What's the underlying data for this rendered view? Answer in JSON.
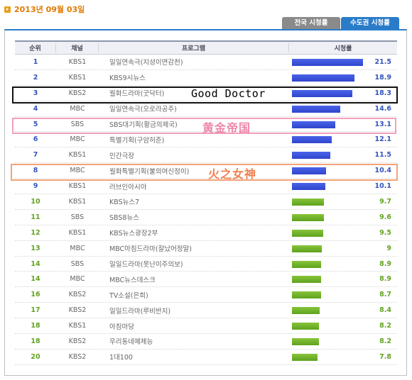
{
  "date": "2013년 09월 03일",
  "tabs": [
    {
      "label": "전국 시청률",
      "active": false
    },
    {
      "label": "수도권 시청률",
      "active": true
    }
  ],
  "columns": {
    "rank": "순위",
    "channel": "채널",
    "program": "프로그램",
    "rating": "시청률"
  },
  "colors": {
    "top_bar": "#3a52dd",
    "lower_bar": "#6aaa26",
    "accent_tab": "#2a7cc9",
    "date_text": "#e07a00"
  },
  "max_rating": 21.5,
  "rows": [
    {
      "rank": "1",
      "channel": "KBS1",
      "program": "일일연속극(지성이면감천)",
      "rating": 21.5,
      "rating_text": "21.5",
      "bar": "blue"
    },
    {
      "rank": "2",
      "channel": "KBS1",
      "program": "KBS9시뉴스",
      "rating": 18.9,
      "rating_text": "18.9",
      "bar": "blue"
    },
    {
      "rank": "3",
      "channel": "KBS2",
      "program": "월화드라마(굿닥터)",
      "rating": 18.3,
      "rating_text": "18.3",
      "bar": "blue"
    },
    {
      "rank": "4",
      "channel": "MBC",
      "program": "일일연속극(오로라공주)",
      "rating": 14.6,
      "rating_text": "14.6",
      "bar": "blue"
    },
    {
      "rank": "5",
      "channel": "SBS",
      "program": "SBS대기획(황금의제국)",
      "rating": 13.1,
      "rating_text": "13.1",
      "bar": "blue"
    },
    {
      "rank": "6",
      "channel": "MBC",
      "program": "특별기획(구암허준)",
      "rating": 12.1,
      "rating_text": "12.1",
      "bar": "blue"
    },
    {
      "rank": "7",
      "channel": "KBS1",
      "program": "인간극장",
      "rating": 11.5,
      "rating_text": "11.5",
      "bar": "blue"
    },
    {
      "rank": "8",
      "channel": "MBC",
      "program": "월화특별기획(불의여신정이)",
      "rating": 10.4,
      "rating_text": "10.4",
      "bar": "blue"
    },
    {
      "rank": "9",
      "channel": "KBS1",
      "program": "러브인아시아",
      "rating": 10.1,
      "rating_text": "10.1",
      "bar": "blue"
    },
    {
      "rank": "10",
      "channel": "KBS1",
      "program": "KBS뉴스7",
      "rating": 9.7,
      "rating_text": "9.7",
      "bar": "green"
    },
    {
      "rank": "11",
      "channel": "SBS",
      "program": "SBS8뉴스",
      "rating": 9.6,
      "rating_text": "9.6",
      "bar": "green"
    },
    {
      "rank": "12",
      "channel": "KBS1",
      "program": "KBS뉴스광장2부",
      "rating": 9.5,
      "rating_text": "9.5",
      "bar": "green"
    },
    {
      "rank": "13",
      "channel": "MBC",
      "program": "MBC아침드라마(잘났어정말)",
      "rating": 9.0,
      "rating_text": "9",
      "bar": "green"
    },
    {
      "rank": "14",
      "channel": "SBS",
      "program": "일일드라마(못난이주의보)",
      "rating": 8.9,
      "rating_text": "8.9",
      "bar": "green"
    },
    {
      "rank": "14",
      "channel": "MBC",
      "program": "MBC뉴스데스크",
      "rating": 8.9,
      "rating_text": "8.9",
      "bar": "green"
    },
    {
      "rank": "16",
      "channel": "KBS2",
      "program": "TV소설(은희)",
      "rating": 8.7,
      "rating_text": "8.7",
      "bar": "green"
    },
    {
      "rank": "17",
      "channel": "KBS2",
      "program": "일일드라마(루비반지)",
      "rating": 8.4,
      "rating_text": "8.4",
      "bar": "green"
    },
    {
      "rank": "18",
      "channel": "KBS1",
      "program": "아침마당",
      "rating": 8.2,
      "rating_text": "8.2",
      "bar": "green"
    },
    {
      "rank": "18",
      "channel": "KBS2",
      "program": "우리동네예체능",
      "rating": 8.2,
      "rating_text": "8.2",
      "bar": "green"
    },
    {
      "rank": "20",
      "channel": "KBS2",
      "program": "1대100",
      "rating": 7.8,
      "rating_text": "7.8",
      "bar": "green"
    }
  ],
  "annotations": [
    {
      "row": 2,
      "text": "Good Doctor",
      "color": "#000000"
    },
    {
      "row": 4,
      "text": "黄金帝国",
      "color": "#ee88aa"
    },
    {
      "row": 7,
      "text": "火之女神",
      "color": "#f08050"
    }
  ]
}
